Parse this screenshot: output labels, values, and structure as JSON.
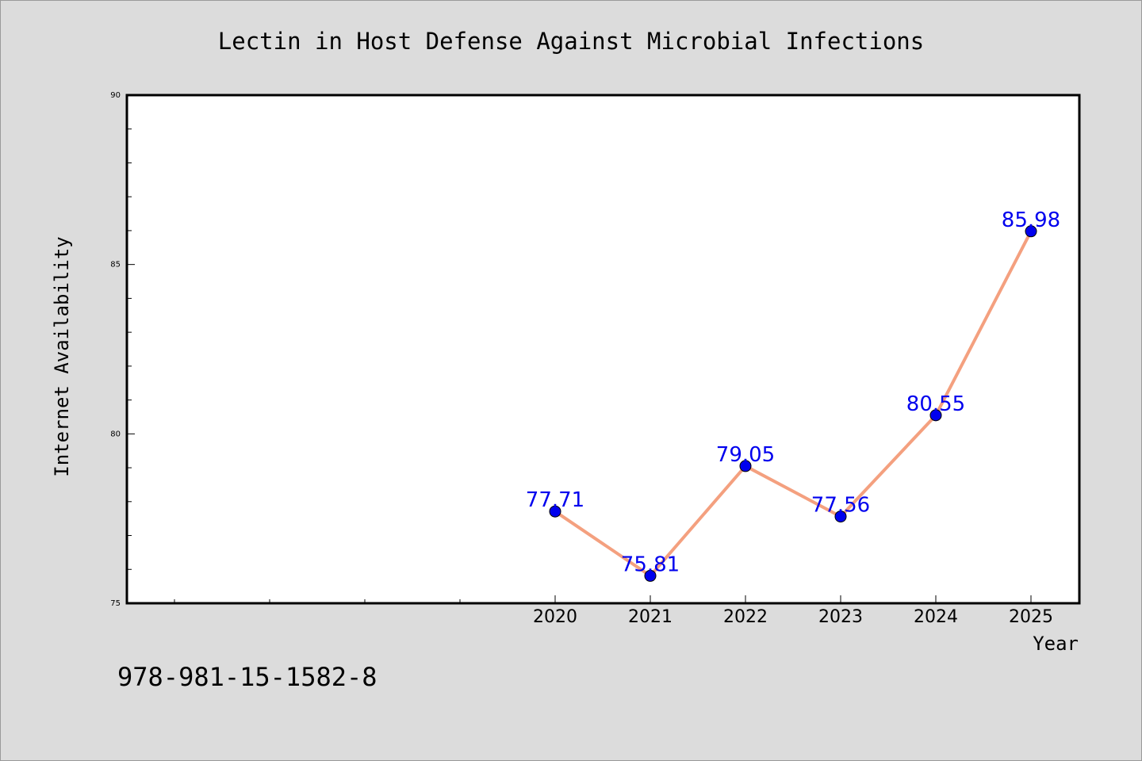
{
  "chart_data": {
    "type": "line",
    "title": "Lectin in Host Defense Against Microbial Infections",
    "xlabel": "Year",
    "ylabel": "Internet Availability",
    "x": [
      "2020",
      "2021",
      "2022",
      "2023",
      "2024",
      "2025"
    ],
    "values": [
      77.71,
      75.81,
      79.05,
      77.56,
      80.55,
      85.98
    ],
    "data_labels": [
      "77.71",
      "75.81",
      "79.05",
      "77.56",
      "80.55",
      "85.98"
    ],
    "ylim": [
      75,
      90
    ],
    "y_ticks": [
      75,
      80,
      85,
      90
    ],
    "y_tick_labels": [
      "75",
      "80",
      "85",
      "90"
    ],
    "grid": false,
    "legend": "none",
    "line_color": "#f4a07f",
    "marker_color": "#0000ee",
    "label_color": "#0000ee"
  },
  "footer_text": "978-981-15-1582-8",
  "colors": {
    "background": "#dcdcdc",
    "plot_background": "#ffffff",
    "axis": "#000000"
  }
}
